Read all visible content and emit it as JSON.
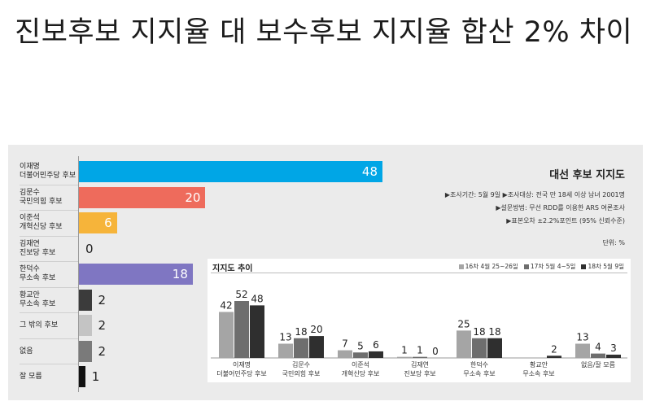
{
  "headline": "진보후보 지지율 대 보수후보 지지율 합산 2% 차이",
  "panel": {
    "title": "대선 후보 지지도",
    "notes": [
      "▶조사기간: 5월 9일  ▶조사대상: 전국 만 18세 이상 남녀 2001명",
      "▶설문방법: 무선 RDD를 이용한 ARS 여론조사",
      "▶표본오차 ±2.2%포인트 (95% 신뢰수준)",
      "단위: %"
    ]
  },
  "chart_data": [
    {
      "type": "bar",
      "orientation": "horizontal",
      "categories": [
        [
          "이재명",
          "더불어민주당 후보"
        ],
        [
          "김문수",
          "국민의힘 후보"
        ],
        [
          "이준석",
          "개혁신당 후보"
        ],
        [
          "김재연",
          "진보당 후보"
        ],
        [
          "한덕수",
          "무소속 후보"
        ],
        [
          "황교안",
          "무소속 후보"
        ],
        [
          "그 밖의 후보"
        ],
        [
          "없음"
        ],
        [
          "잘 모름"
        ]
      ],
      "values": [
        48,
        20,
        6,
        0,
        18,
        2,
        2,
        2,
        1
      ],
      "colors": [
        "#00a6e6",
        "#ee6b5c",
        "#f6b43a",
        "#cccccc",
        "#7f76c2",
        "#3b3b3b",
        "#c4c4c4",
        "#7a7a7a",
        "#111111"
      ],
      "xlim": [
        0,
        60
      ],
      "unit": "%"
    },
    {
      "type": "bar",
      "title": "지지도 추이",
      "categories": [
        [
          "이재명",
          "더불어민주당 후보"
        ],
        [
          "김문수",
          "국민의힘 후보"
        ],
        [
          "이준석",
          "개혁신당 후보"
        ],
        [
          "김재연",
          "진보당 후보"
        ],
        [
          "한덕수",
          "무소속 후보"
        ],
        [
          "황교안",
          "무소속 후보"
        ],
        [
          "없음/잘 모름"
        ]
      ],
      "series": [
        {
          "name": "16차 4월 25~26일",
          "color": "#a5a5a5",
          "values": [
            42,
            13,
            7,
            1,
            25,
            null,
            13
          ]
        },
        {
          "name": "17차 5월 4~5일",
          "color": "#6e6e6e",
          "values": [
            52,
            18,
            5,
            1,
            18,
            null,
            4
          ]
        },
        {
          "name": "18차 5월 9일",
          "color": "#2f2f2f",
          "values": [
            48,
            20,
            6,
            0,
            18,
            2,
            3
          ]
        }
      ],
      "ylim": [
        0,
        60
      ]
    }
  ]
}
